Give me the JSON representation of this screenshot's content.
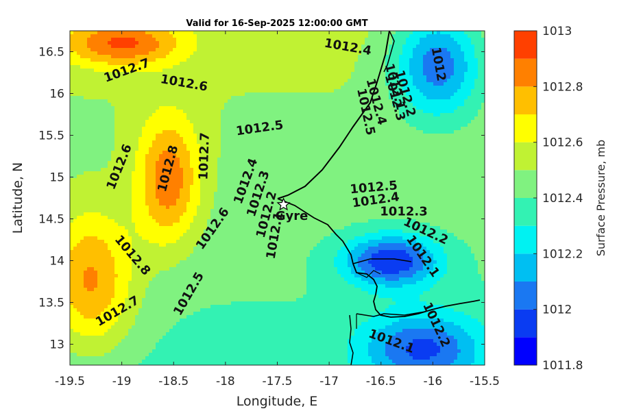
{
  "chart_data": {
    "type": "heatmap",
    "subtype": "filled-contour-map",
    "title": "Valid for 16-Sep-2025 12:00:00 GMT",
    "xlabel": "Longitude, E",
    "ylabel": "Latitude, N",
    "xlim": [
      -19.5,
      -15.5
    ],
    "ylim": [
      12.75,
      16.75
    ],
    "xticks": [
      -19.5,
      -19,
      -18.5,
      -18,
      -17.5,
      -17,
      -16.5,
      -16,
      -15.5
    ],
    "xtick_labels": [
      "-19.5",
      "-19",
      "-18.5",
      "-18",
      "-17.5",
      "-17",
      "-16.5",
      "-16",
      "-15.5"
    ],
    "yticks": [
      13,
      13.5,
      14,
      14.5,
      15,
      15.5,
      16,
      16.5
    ],
    "ytick_labels": [
      "13",
      "13.5",
      "14",
      "14.5",
      "15",
      "15.5",
      "16",
      "16.5"
    ],
    "colorbar": {
      "label": "Surface Pressure, mb",
      "range": [
        1011.8,
        1013
      ],
      "ticks": [
        1011.8,
        1012,
        1012.2,
        1012.4,
        1012.6,
        1012.8,
        1013
      ],
      "tick_labels": [
        "1011.8",
        "1012",
        "1012.2",
        "1012.4",
        "1012.6",
        "1012.8",
        "1013"
      ],
      "levels": [
        {
          "lo": 1011.8,
          "hi": 1011.9,
          "color": "#0000ff"
        },
        {
          "lo": 1011.9,
          "hi": 1012.0,
          "color": "#0a3cf2"
        },
        {
          "lo": 1012.0,
          "hi": 1012.1,
          "color": "#1a78f2"
        },
        {
          "lo": 1012.1,
          "hi": 1012.2,
          "color": "#00bff2"
        },
        {
          "lo": 1012.2,
          "hi": 1012.3,
          "color": "#00f2f2"
        },
        {
          "lo": 1012.3,
          "hi": 1012.4,
          "color": "#33f2b3"
        },
        {
          "lo": 1012.4,
          "hi": 1012.5,
          "color": "#80f280"
        },
        {
          "lo": 1012.5,
          "hi": 1012.6,
          "color": "#c0f233"
        },
        {
          "lo": 1012.6,
          "hi": 1012.7,
          "color": "#ffff00"
        },
        {
          "lo": 1012.7,
          "hi": 1012.8,
          "color": "#ffbf00"
        },
        {
          "lo": 1012.8,
          "hi": 1012.9,
          "color": "#ff8000"
        },
        {
          "lo": 1012.9,
          "hi": 1013.0,
          "color": "#ff4000"
        },
        {
          "lo": 1013.0,
          "hi": 1013.1,
          "color": "#ff0000"
        }
      ]
    },
    "field_centers": [
      {
        "lon": -16.4,
        "lat": 14.0,
        "value": 1011.93,
        "spread_lon": 0.32,
        "spread_lat": 0.22
      },
      {
        "lon": -15.95,
        "lat": 16.35,
        "value": 1011.98,
        "spread_lon": 0.3,
        "spread_lat": 0.45
      },
      {
        "lon": -16.1,
        "lat": 12.95,
        "value": 1012.04,
        "spread_lon": 0.4,
        "spread_lat": 0.3
      },
      {
        "lon": -18.55,
        "lat": 14.95,
        "value": 1012.86,
        "spread_lon": 0.22,
        "spread_lat": 0.55
      },
      {
        "lon": -19.3,
        "lat": 13.75,
        "value": 1012.85,
        "spread_lon": 0.3,
        "spread_lat": 0.6
      },
      {
        "lon": -19.0,
        "lat": 16.6,
        "value": 1012.85,
        "spread_lon": 0.4,
        "spread_lat": 0.2
      }
    ],
    "contour_labels": [
      {
        "text": "1012.4",
        "lon": -16.82,
        "lat": 16.55,
        "angle": 10
      },
      {
        "text": "1012",
        "lon": -15.95,
        "lat": 16.35,
        "angle": 80
      },
      {
        "text": "1012.7",
        "lon": -18.95,
        "lat": 16.27,
        "angle": -20
      },
      {
        "text": "1012.6",
        "lon": -18.4,
        "lat": 16.12,
        "angle": 10
      },
      {
        "text": "1012.1",
        "lon": -16.37,
        "lat": 16.08,
        "angle": 75
      },
      {
        "text": "1012.2",
        "lon": -16.27,
        "lat": 16.0,
        "angle": 75
      },
      {
        "text": "1012.3",
        "lon": -16.37,
        "lat": 15.95,
        "angle": 75
      },
      {
        "text": "1012.4",
        "lon": -16.55,
        "lat": 15.9,
        "angle": 75
      },
      {
        "text": "1012.5",
        "lon": -16.65,
        "lat": 15.78,
        "angle": 78
      },
      {
        "text": "1012.5",
        "lon": -17.67,
        "lat": 15.58,
        "angle": -8
      },
      {
        "text": "1012.8",
        "lon": -18.55,
        "lat": 15.1,
        "angle": -75
      },
      {
        "text": "1012.7",
        "lon": -18.2,
        "lat": 15.25,
        "angle": -88
      },
      {
        "text": "1012.6",
        "lon": -19.02,
        "lat": 15.12,
        "angle": -68
      },
      {
        "text": "1012.4",
        "lon": -17.8,
        "lat": 14.95,
        "angle": -70
      },
      {
        "text": "1012.3",
        "lon": -17.68,
        "lat": 14.8,
        "angle": -72
      },
      {
        "text": "1012.2",
        "lon": -17.6,
        "lat": 14.55,
        "angle": -75
      },
      {
        "text": "1012.1",
        "lon": -17.52,
        "lat": 14.3,
        "angle": -80
      },
      {
        "text": "1012.6",
        "lon": -18.12,
        "lat": 14.38,
        "angle": -55
      },
      {
        "text": "1012.5",
        "lon": -16.57,
        "lat": 14.87,
        "angle": -5
      },
      {
        "text": "1012.4",
        "lon": -16.55,
        "lat": 14.72,
        "angle": -8
      },
      {
        "text": "1012.3",
        "lon": -16.28,
        "lat": 14.58,
        "angle": 0
      },
      {
        "text": "1012.2",
        "lon": -16.07,
        "lat": 14.35,
        "angle": 25
      },
      {
        "text": "1012.1",
        "lon": -16.1,
        "lat": 14.05,
        "angle": 55
      },
      {
        "text": "1012.8",
        "lon": -18.9,
        "lat": 14.06,
        "angle": 50
      },
      {
        "text": "1012.7",
        "lon": -19.04,
        "lat": 13.39,
        "angle": -30
      },
      {
        "text": "1012.5",
        "lon": -18.35,
        "lat": 13.6,
        "angle": -60
      },
      {
        "text": "1012.2",
        "lon": -15.97,
        "lat": 13.23,
        "angle": 65
      },
      {
        "text": "1012.1",
        "lon": -16.4,
        "lat": 13.03,
        "angle": 20
      }
    ],
    "location": {
      "name": "Gyre",
      "lon": -17.44,
      "lat": 14.67
    }
  }
}
